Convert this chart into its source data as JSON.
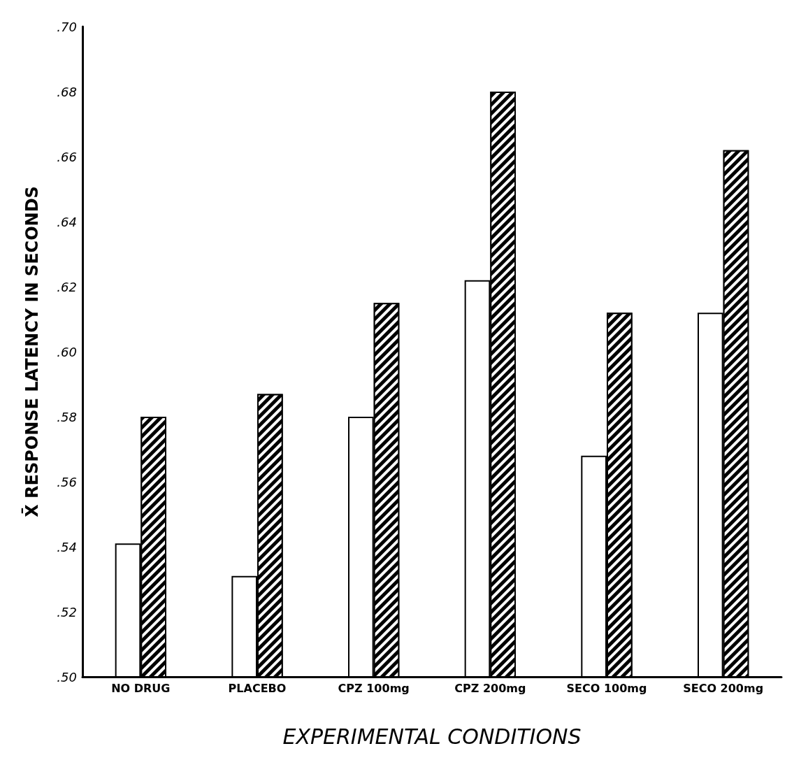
{
  "chart_data": {
    "type": "bar",
    "xlabel": "EXPERIMENTAL CONDITIONS",
    "ylabel": "X̄ RESPONSE LATENCY IN SECONDS",
    "categories": [
      "NO DRUG",
      "PLACEBO",
      "CPZ 100mg",
      "CPZ 200mg",
      "SECO 100mg",
      "SECO 200mg"
    ],
    "series": [
      {
        "color": "#ffffff",
        "values": [
          0.541,
          0.531,
          0.58,
          0.622,
          0.568,
          0.612
        ]
      },
      {
        "color": "#000000",
        "values": [
          0.58,
          0.587,
          0.615,
          0.68,
          0.612,
          0.662
        ]
      }
    ],
    "ylim": [
      0.5,
      0.7
    ],
    "yticks": [
      {
        "value": 0.5,
        "label": ".50"
      },
      {
        "value": 0.52,
        "label": ".52"
      },
      {
        "value": 0.54,
        "label": ".54"
      },
      {
        "value": 0.56,
        "label": ".56"
      },
      {
        "value": 0.58,
        "label": ".58"
      },
      {
        "value": 0.6,
        "label": ".60"
      },
      {
        "value": 0.62,
        "label": ".62"
      },
      {
        "value": 0.64,
        "label": ".64"
      },
      {
        "value": 0.66,
        "label": ".66"
      },
      {
        "value": 0.68,
        "label": ".68"
      },
      {
        "value": 0.7,
        "label": ".70"
      }
    ],
    "grid": false
  }
}
